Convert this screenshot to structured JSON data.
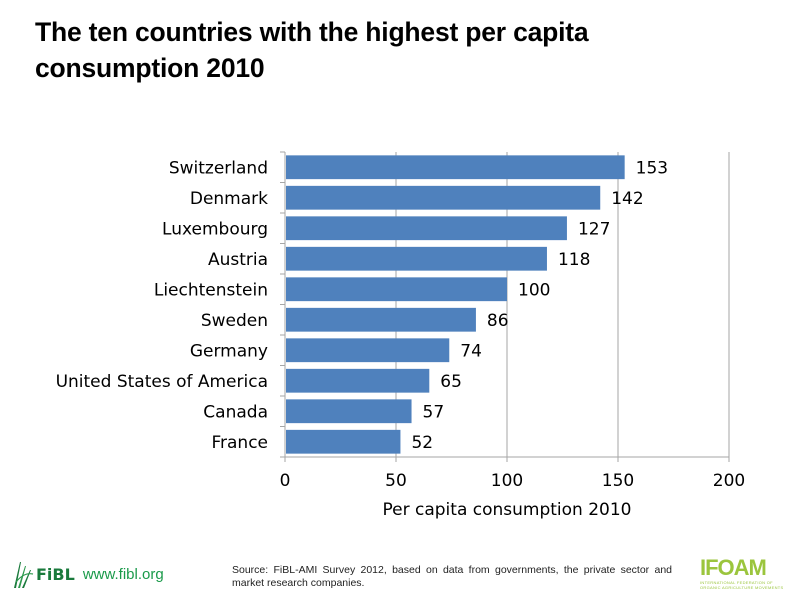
{
  "page": {
    "title": "The ten countries with the highest per capita consumption 2010"
  },
  "chart_data": {
    "type": "bar",
    "orientation": "horizontal",
    "title": "The ten countries with the highest per capita consumption 2010",
    "categories": [
      "Switzerland",
      "Denmark",
      "Luxembourg",
      "Austria",
      "Liechtenstein",
      "Sweden",
      "Germany",
      "United States of America",
      "Canada",
      "France"
    ],
    "values": [
      153,
      142,
      127,
      118,
      100,
      86,
      74,
      65,
      57,
      52
    ],
    "value_labels": [
      "153",
      "142",
      "127",
      "118",
      "100",
      "86",
      "74",
      "65",
      "57",
      "52"
    ],
    "xlabel": "Per capita consumption 2010",
    "ylabel": "",
    "xlim": [
      0,
      200
    ],
    "xticks": [
      0,
      50,
      100,
      150,
      200
    ],
    "xtick_labels": [
      "0",
      "50",
      "100",
      "150",
      "200"
    ],
    "grid": "vertical",
    "legend": "none",
    "bar_color": "#4F81BD",
    "grid_color": "#A6A6A6"
  },
  "footer": {
    "source": "Source: FiBL-AMI Survey 2012, based on data from governments, the private sector and market research companies.",
    "fibl_logo_text": "FiBL",
    "fibl_url": "www.fibl.org",
    "ifoam_logo_text": "IFOAM",
    "ifoam_subtitle": "INTERNATIONAL FEDERATION OF ORGANIC AGRICULTURE MOVEMENTS",
    "fibl_color": "#1a7a3c",
    "ifoam_color": "#9bc53d"
  }
}
